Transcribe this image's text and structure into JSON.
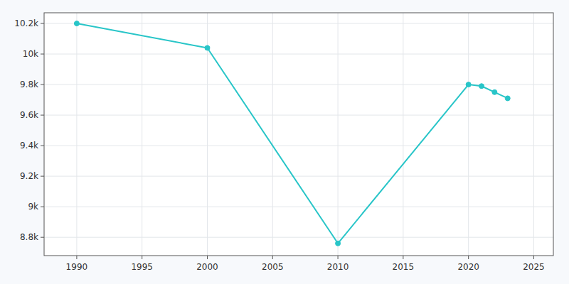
{
  "chart_data": {
    "type": "line",
    "x": [
      1990,
      2000,
      2010,
      2020,
      2021,
      2022,
      2023
    ],
    "values": [
      10200,
      10040,
      8760,
      9800,
      9790,
      9750,
      9710
    ],
    "color": "#28c5c8",
    "marker": "circle",
    "xlim": [
      1987.5,
      2026.5
    ],
    "ylim": [
      8680,
      10270
    ],
    "xticks": [
      1990,
      1995,
      2000,
      2005,
      2010,
      2015,
      2020,
      2025
    ],
    "yticks": [
      {
        "value": 8800,
        "label": "8.8k"
      },
      {
        "value": 9000,
        "label": "9k"
      },
      {
        "value": 9200,
        "label": "9.2k"
      },
      {
        "value": 9400,
        "label": "9.4k"
      },
      {
        "value": 9600,
        "label": "9.6k"
      },
      {
        "value": 9800,
        "label": "9.8k"
      },
      {
        "value": 10000,
        "label": "10k"
      },
      {
        "value": 10200,
        "label": "10.2k"
      }
    ],
    "grid": true
  }
}
